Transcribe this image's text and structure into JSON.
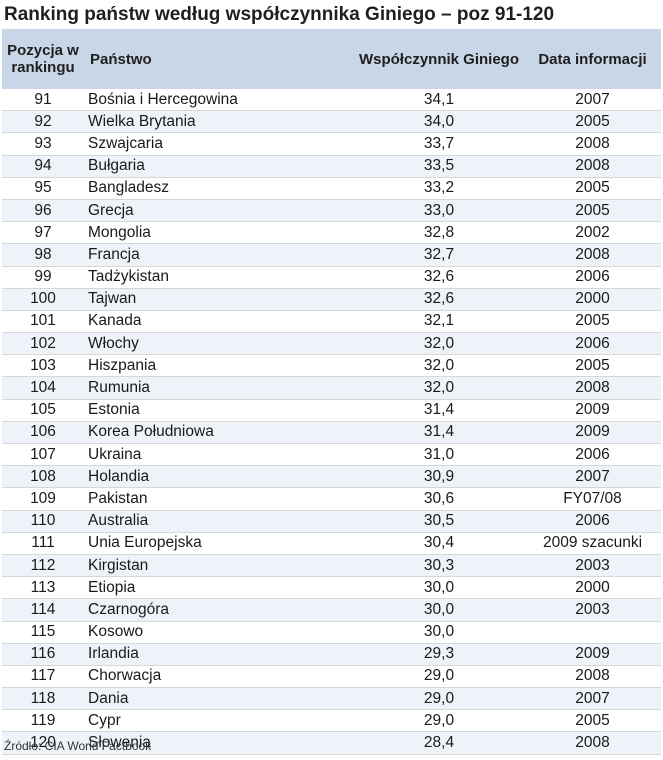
{
  "title": "Ranking państw według współczynnika Giniego – poz 91-120",
  "headers": {
    "rank": "Pozycja w rankingu",
    "country": "Państwo",
    "value": "Współczynnik Giniego",
    "date": "Data informacji"
  },
  "rows": [
    {
      "rank": "91",
      "country": "Bośnia i Hercegowina",
      "value": "34,1",
      "date": "2007"
    },
    {
      "rank": "92",
      "country": "Wielka Brytania",
      "value": "34,0",
      "date": "2005"
    },
    {
      "rank": "93",
      "country": "Szwajcaria",
      "value": "33,7",
      "date": "2008"
    },
    {
      "rank": "94",
      "country": "Bułgaria",
      "value": "33,5",
      "date": "2008"
    },
    {
      "rank": "95",
      "country": "Bangladesz",
      "value": "33,2",
      "date": "2005"
    },
    {
      "rank": "96",
      "country": "Grecja",
      "value": "33,0",
      "date": "2005"
    },
    {
      "rank": "97",
      "country": "Mongolia",
      "value": "32,8",
      "date": "2002"
    },
    {
      "rank": "98",
      "country": "Francja",
      "value": "32,7",
      "date": "2008"
    },
    {
      "rank": "99",
      "country": "Tadżykistan",
      "value": "32,6",
      "date": "2006"
    },
    {
      "rank": "100",
      "country": "Tajwan",
      "value": "32,6",
      "date": "2000"
    },
    {
      "rank": "101",
      "country": "Kanada",
      "value": "32,1",
      "date": "2005"
    },
    {
      "rank": "102",
      "country": "Włochy",
      "value": "32,0",
      "date": "2006"
    },
    {
      "rank": "103",
      "country": "Hiszpania",
      "value": "32,0",
      "date": "2005"
    },
    {
      "rank": "104",
      "country": "Rumunia",
      "value": "32,0",
      "date": "2008"
    },
    {
      "rank": "105",
      "country": "Estonia",
      "value": "31,4",
      "date": "2009"
    },
    {
      "rank": "106",
      "country": "Korea Południowa",
      "value": "31,4",
      "date": "2009"
    },
    {
      "rank": "107",
      "country": "Ukraina",
      "value": "31,0",
      "date": "2006"
    },
    {
      "rank": "108",
      "country": "Holandia",
      "value": "30,9",
      "date": "2007"
    },
    {
      "rank": "109",
      "country": "Pakistan",
      "value": "30,6",
      "date": "FY07/08"
    },
    {
      "rank": "110",
      "country": "Australia",
      "value": "30,5",
      "date": "2006"
    },
    {
      "rank": "111",
      "country": "Unia Europejska",
      "value": "30,4",
      "date": "2009 szacunki"
    },
    {
      "rank": "112",
      "country": "Kirgistan",
      "value": "30,3",
      "date": "2003"
    },
    {
      "rank": "113",
      "country": "Etiopia",
      "value": "30,0",
      "date": "2000"
    },
    {
      "rank": "114",
      "country": "Czarnogóra",
      "value": "30,0",
      "date": "2003"
    },
    {
      "rank": "115",
      "country": "Kosowo",
      "value": "30,0",
      "date": ""
    },
    {
      "rank": "116",
      "country": "Irlandia",
      "value": "29,3",
      "date": "2009"
    },
    {
      "rank": "117",
      "country": "Chorwacja",
      "value": "29,0",
      "date": "2008"
    },
    {
      "rank": "118",
      "country": "Dania",
      "value": "29,0",
      "date": "2007"
    },
    {
      "rank": "119",
      "country": "Cypr",
      "value": "29,0",
      "date": "2005"
    },
    {
      "rank": "120",
      "country": "Słowenia",
      "value": "28,4",
      "date": "2008"
    }
  ],
  "source": "Źródło: CIA World Factbook"
}
